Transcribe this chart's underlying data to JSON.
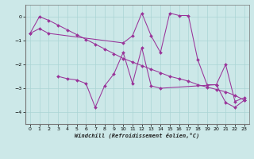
{
  "xlabel": "Windchill (Refroidissement éolien,°C)",
  "background_color": "#cce8e8",
  "line_color": "#993399",
  "series1": {
    "x": [
      0,
      1,
      2,
      3,
      4,
      5,
      6,
      7,
      8,
      9,
      10,
      11,
      12,
      13,
      14,
      15,
      16,
      17,
      18,
      19,
      20,
      21,
      22,
      23
    ],
    "y": [
      -0.7,
      0.0,
      -0.15,
      -0.35,
      -0.55,
      -0.75,
      -0.95,
      -1.15,
      -1.35,
      -1.55,
      -1.75,
      -1.9,
      -2.05,
      -2.2,
      -2.35,
      -2.5,
      -2.6,
      -2.7,
      -2.85,
      -2.95,
      -3.05,
      -3.15,
      -3.3,
      -3.5
    ]
  },
  "series2": {
    "x": [
      0,
      1,
      2,
      10,
      11,
      12,
      13,
      14,
      15,
      16,
      17,
      18,
      19,
      20,
      21,
      22,
      23
    ],
    "y": [
      -0.7,
      -0.5,
      -0.7,
      -1.1,
      -0.8,
      0.15,
      -0.8,
      -1.5,
      0.15,
      0.05,
      0.05,
      -1.8,
      -2.85,
      -2.85,
      -2.0,
      -3.55,
      -3.4
    ]
  },
  "series3": {
    "x": [
      3,
      4,
      5,
      6,
      7,
      8,
      9,
      10,
      11,
      12,
      13,
      14,
      20,
      21,
      22,
      23
    ],
    "y": [
      -2.5,
      -2.6,
      -2.65,
      -2.8,
      -3.8,
      -2.9,
      -2.4,
      -1.5,
      -2.8,
      -1.3,
      -2.9,
      -3.0,
      -2.85,
      -3.6,
      -3.8,
      -3.5
    ]
  },
  "ylim": [
    -4.5,
    0.5
  ],
  "xlim": [
    -0.5,
    23.5
  ],
  "yticks": [
    0,
    -1,
    -2,
    -3,
    -4
  ],
  "xticks": [
    0,
    1,
    2,
    3,
    4,
    5,
    6,
    7,
    8,
    9,
    10,
    11,
    12,
    13,
    14,
    15,
    16,
    17,
    18,
    19,
    20,
    21,
    22,
    23
  ]
}
